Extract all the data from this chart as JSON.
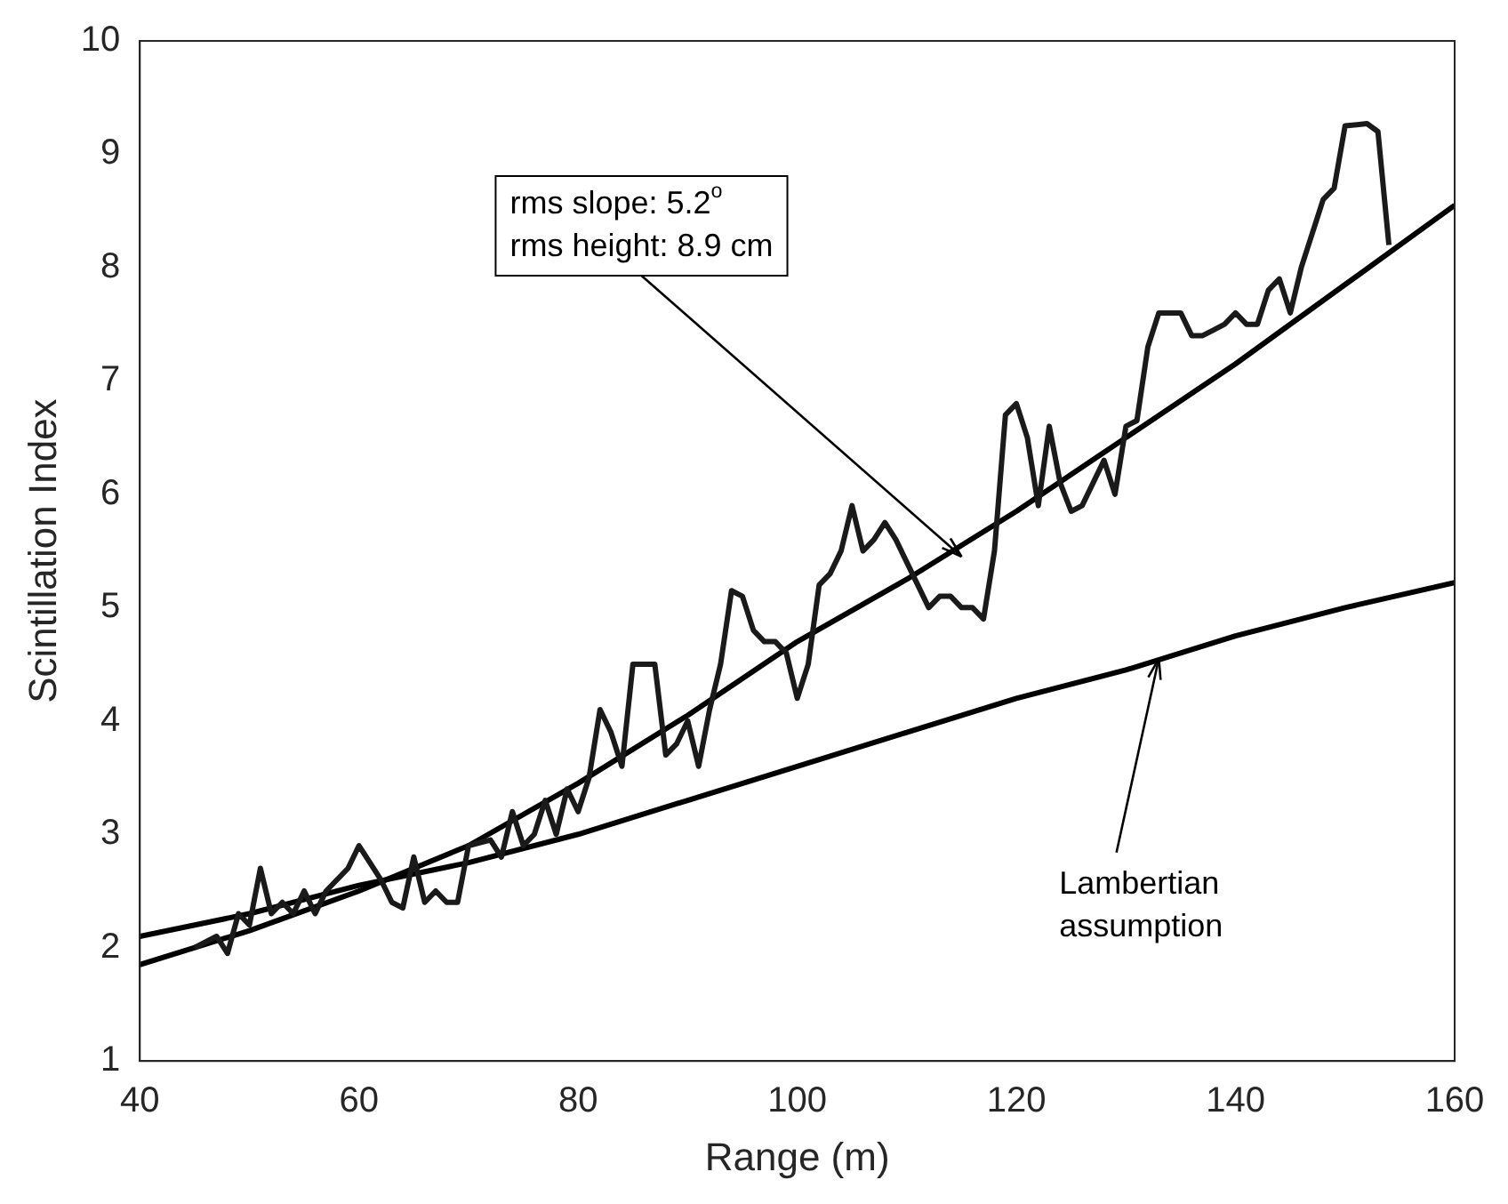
{
  "chart_data": {
    "type": "line",
    "xlabel": "Range (m)",
    "ylabel": "Scintillation Index",
    "xlim": [
      40,
      160
    ],
    "xticks": [
      40,
      60,
      80,
      100,
      120,
      140,
      160
    ],
    "ylim": [
      1,
      10
    ],
    "yticks": [
      1,
      2,
      3,
      4,
      5,
      6,
      7,
      8,
      9,
      10
    ],
    "grid": false,
    "legend": false,
    "marker": "none",
    "line_style": "solid",
    "series": [
      {
        "color": "#1a1a1a",
        "x": [
          45,
          47,
          48,
          49,
          50,
          51,
          52,
          53,
          54,
          55,
          56,
          57,
          58,
          59,
          60,
          61,
          62,
          63,
          64,
          65,
          66,
          67,
          68,
          69,
          70,
          72,
          73,
          74,
          75,
          76,
          77,
          78,
          79,
          80,
          81,
          82,
          83,
          84,
          85,
          86,
          87,
          88,
          89,
          90,
          91,
          92,
          93,
          94,
          95,
          96,
          97,
          98,
          99,
          100,
          101,
          102,
          103,
          104,
          105,
          106,
          107,
          108,
          109,
          110,
          111,
          112,
          113,
          114,
          115,
          116,
          117,
          118,
          119,
          120,
          121,
          122,
          123,
          124,
          125,
          126,
          127,
          128,
          129,
          130,
          131,
          132,
          133,
          134,
          135,
          136,
          137,
          138,
          139,
          140,
          141,
          142,
          143,
          144,
          145,
          146,
          147,
          148,
          149,
          150,
          152,
          153,
          154
        ],
        "values": [
          2.0,
          2.1,
          1.95,
          2.3,
          2.2,
          2.7,
          2.3,
          2.4,
          2.3,
          2.5,
          2.3,
          2.5,
          2.6,
          2.7,
          2.9,
          2.75,
          2.6,
          2.4,
          2.35,
          2.8,
          2.4,
          2.5,
          2.4,
          2.4,
          2.9,
          2.95,
          2.8,
          3.2,
          2.9,
          3.0,
          3.3,
          3.0,
          3.4,
          3.2,
          3.5,
          4.1,
          3.9,
          3.6,
          4.5,
          4.5,
          4.5,
          3.7,
          3.8,
          4.0,
          3.6,
          4.1,
          4.5,
          5.15,
          5.1,
          4.8,
          4.7,
          4.7,
          4.6,
          4.2,
          4.5,
          5.2,
          5.3,
          5.5,
          5.9,
          5.5,
          5.6,
          5.75,
          5.6,
          5.4,
          5.2,
          5.0,
          5.1,
          5.1,
          5.0,
          5.0,
          4.9,
          5.5,
          6.7,
          6.8,
          6.5,
          5.9,
          6.6,
          6.1,
          5.85,
          5.9,
          6.1,
          6.3,
          6.0,
          6.6,
          6.65,
          7.3,
          7.6,
          7.6,
          7.6,
          7.4,
          7.4,
          7.45,
          7.5,
          7.6,
          7.5,
          7.5,
          7.8,
          7.9,
          7.6,
          8.0,
          8.3,
          8.6,
          8.7,
          9.25,
          9.27,
          9.2,
          8.2
        ]
      },
      {
        "color": "#000000",
        "x": [
          40,
          50,
          60,
          70,
          80,
          90,
          100,
          110,
          120,
          130,
          140,
          150,
          160
        ],
        "values": [
          1.85,
          2.15,
          2.5,
          2.9,
          3.45,
          4.05,
          4.7,
          5.25,
          5.85,
          6.5,
          7.15,
          7.85,
          8.55
        ]
      },
      {
        "color": "#000000",
        "x": [
          40,
          50,
          60,
          70,
          80,
          90,
          100,
          110,
          120,
          130,
          140,
          150,
          160
        ],
        "values": [
          2.1,
          2.3,
          2.55,
          2.75,
          3.0,
          3.3,
          3.6,
          3.9,
          4.2,
          4.45,
          4.75,
          5.0,
          5.22
        ]
      }
    ],
    "annotations": [
      {
        "text": "rms slope: 5.2$^{o}$\nrms height: 8.9 cm",
        "x": 115,
        "y": 5.45
      },
      {
        "text": "Lambertian\nassumption",
        "x": 133,
        "y": 4.55
      }
    ]
  }
}
